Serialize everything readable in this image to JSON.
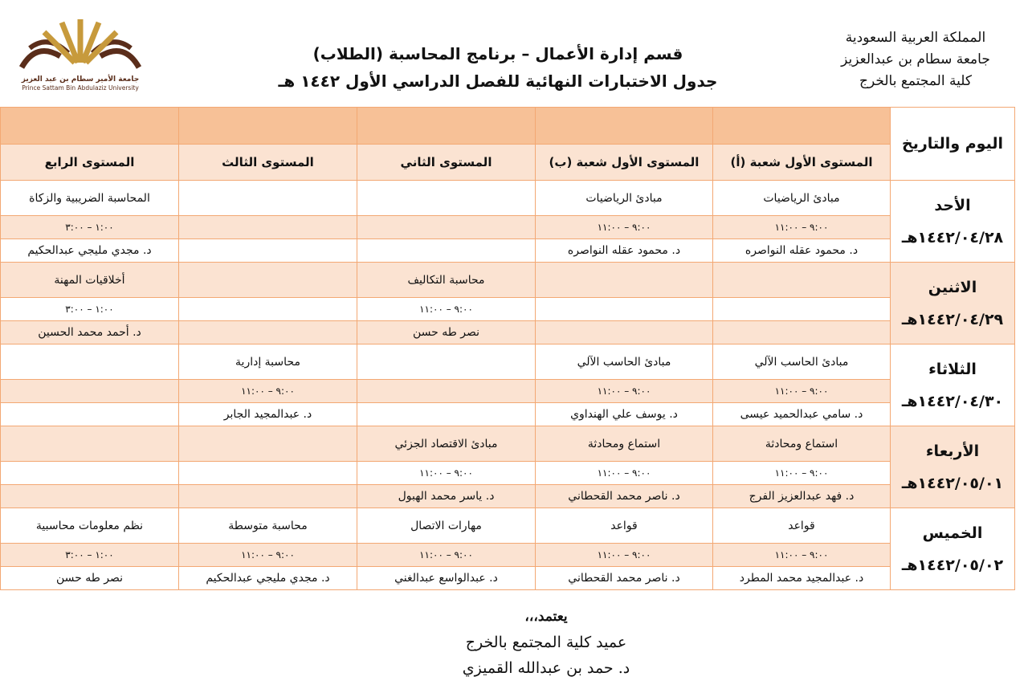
{
  "header": {
    "right_lines": [
      "المملكة العربية السعودية",
      "جامعة سطام بن عبدالعزيز",
      "كلية المجتمع بالخرج"
    ],
    "title_line1": "قسم إدارة الأعمال – برنامج المحاسبة (الطلاب)",
    "title_line2": "جدول الاختبارات النهائية للفصل الدراسي الأول ١٤٤٢ هـ",
    "logo_text_ar": "جامعة الأمير سطام بن عبد العزيز",
    "logo_text_en": "Prince Sattam Bin Abdulaziz University"
  },
  "colors": {
    "header_dark": "#f7c197",
    "header_light": "#fbe3d2",
    "border": "#f3a873",
    "logo_gold": "#c79a3c",
    "logo_brown": "#5a2d1a"
  },
  "table": {
    "day_header": "اليوم والتاريخ",
    "columns": [
      "المستوى الأول شعبة (أ)",
      "المستوى الأول شعبة (ب)",
      "المستوى الثاني",
      "المستوى الثالث",
      "المستوى الرابع"
    ],
    "days": [
      {
        "day": "الأحد",
        "date": "١٤٤٢/٠٤/٢٨هـ",
        "shade": "white",
        "exams": [
          {
            "subject": "مبادئ الرياضيات",
            "time": "٩:٠٠ – ١١:٠٠",
            "instructor": "د. محمود عقله النواصره"
          },
          {
            "subject": "مبادئ الرياضيات",
            "time": "٩:٠٠ – ١١:٠٠",
            "instructor": "د. محمود عقله النواصره"
          },
          {
            "subject": "",
            "time": "",
            "instructor": ""
          },
          {
            "subject": "",
            "time": "",
            "instructor": ""
          },
          {
            "subject": "المحاسبة الضريبية والزكاة",
            "time": "١:٠٠ – ٣:٠٠",
            "instructor": "د. مجدي مليجي عبدالحكيم"
          }
        ]
      },
      {
        "day": "الاثنين",
        "date": "١٤٤٢/٠٤/٢٩هـ",
        "shade": "peach",
        "exams": [
          {
            "subject": "",
            "time": "",
            "instructor": ""
          },
          {
            "subject": "",
            "time": "",
            "instructor": ""
          },
          {
            "subject": "محاسبة التكاليف",
            "time": "٩:٠٠ – ١١:٠٠",
            "instructor": "نصر طه حسن"
          },
          {
            "subject": "",
            "time": "",
            "instructor": ""
          },
          {
            "subject": "أخلاقيات المهنة",
            "time": "١:٠٠ – ٣:٠٠",
            "instructor": "د. أحمد محمد الحسين"
          }
        ]
      },
      {
        "day": "الثلاثاء",
        "date": "١٤٤٢/٠٤/٣٠هـ",
        "shade": "white",
        "exams": [
          {
            "subject": "مبادئ الحاسب الآلي",
            "time": "٩:٠٠ – ١١:٠٠",
            "instructor": "د. سامي عبدالحميد عيسى"
          },
          {
            "subject": "مبادئ الحاسب الآلي",
            "time": "٩:٠٠ – ١١:٠٠",
            "instructor": "د. يوسف علي الهنداوي"
          },
          {
            "subject": "",
            "time": "",
            "instructor": ""
          },
          {
            "subject": "محاسبة إدارية",
            "time": "٩:٠٠ – ١١:٠٠",
            "instructor": "د. عبدالمجيد الجابر"
          },
          {
            "subject": "",
            "time": "",
            "instructor": ""
          }
        ]
      },
      {
        "day": "الأربعاء",
        "date": "١٤٤٢/٠٥/٠١هـ",
        "shade": "peach",
        "exams": [
          {
            "subject": "استماع ومحادثة",
            "time": "٩:٠٠ – ١١:٠٠",
            "instructor": "د. فهد عبدالعزيز الفرج"
          },
          {
            "subject": "استماع ومحادثة",
            "time": "٩:٠٠ – ١١:٠٠",
            "instructor": "د. ناصر محمد القحطاني"
          },
          {
            "subject": "مبادئ الاقتصاد الجزئي",
            "time": "٩:٠٠ – ١١:٠٠",
            "instructor": "د. ياسر محمد الهبول"
          },
          {
            "subject": "",
            "time": "",
            "instructor": ""
          },
          {
            "subject": "",
            "time": "",
            "instructor": ""
          }
        ]
      },
      {
        "day": "الخميس",
        "date": "١٤٤٢/٠٥/٠٢هـ",
        "shade": "white",
        "exams": [
          {
            "subject": "قواعد",
            "time": "٩:٠٠ – ١١:٠٠",
            "instructor": "د. عبدالمجيد محمد المطرد"
          },
          {
            "subject": "قواعد",
            "time": "٩:٠٠ – ١١:٠٠",
            "instructor": "د. ناصر محمد القحطاني"
          },
          {
            "subject": "مهارات الاتصال",
            "time": "٩:٠٠ – ١١:٠٠",
            "instructor": "د. عبدالواسع عبدالغني"
          },
          {
            "subject": "محاسبة متوسطة",
            "time": "٩:٠٠ – ١١:٠٠",
            "instructor": "د. مجدي مليجي عبدالحكيم"
          },
          {
            "subject": "نظم معلومات محاسبية",
            "time": "١:٠٠ – ٣:٠٠",
            "instructor": "نصر طه حسن"
          }
        ]
      }
    ]
  },
  "footer": {
    "approve": "يعتمد،،،",
    "title": "عميد كلية المجتمع بالخرج",
    "name": "د. حمد بن عبدالله القميزي"
  }
}
